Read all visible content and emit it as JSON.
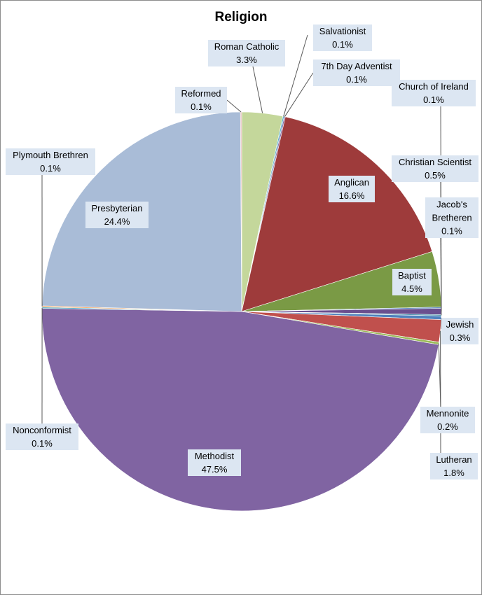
{
  "chart_data": {
    "type": "pie",
    "title": "Religion",
    "slices": [
      {
        "label": "Roman Catholic",
        "value": 3.3,
        "display": "3.3%",
        "color": "#c4d79b"
      },
      {
        "label": "Salvationist",
        "value": 0.1,
        "display": "0.1%",
        "color": "#4bacc6"
      },
      {
        "label": "7th Day Adventist",
        "value": 0.1,
        "display": "0.1%",
        "color": "#8064a2"
      },
      {
        "label": "Anglican",
        "value": 16.6,
        "display": "16.6%",
        "color": "#9e3b3b"
      },
      {
        "label": "Baptist",
        "value": 4.5,
        "display": "4.5%",
        "color": "#7a9a45"
      },
      {
        "label": "Church of Ireland",
        "value": 0.1,
        "display": "0.1%",
        "color": "#4f81bd"
      },
      {
        "label": "Christian Scientist",
        "value": 0.5,
        "display": "0.5%",
        "color": "#6a4f8f"
      },
      {
        "label": "Jacob's Bretheren",
        "value": 0.1,
        "display": "0.1%",
        "color": "#3f8fa8"
      },
      {
        "label": "Jewish",
        "value": 0.3,
        "display": "0.3%",
        "color": "#4f81bd"
      },
      {
        "label": "Lutheran",
        "value": 1.8,
        "display": "1.8%",
        "color": "#c0504d"
      },
      {
        "label": "Mennonite",
        "value": 0.2,
        "display": "0.2%",
        "color": "#9bbb59"
      },
      {
        "label": "Methodist",
        "value": 47.5,
        "display": "47.5%",
        "color": "#8064a2"
      },
      {
        "label": "Nonconformist",
        "value": 0.1,
        "display": "0.1%",
        "color": "#4bacc6"
      },
      {
        "label": "Plymouth Brethren",
        "value": 0.1,
        "display": "0.1%",
        "color": "#f79646"
      },
      {
        "label": "Presbyterian",
        "value": 24.4,
        "display": "24.4%",
        "color": "#a9bcd7"
      },
      {
        "label": "Reformed",
        "value": 0.1,
        "display": "0.1%",
        "color": "#e6b9b8"
      }
    ]
  }
}
